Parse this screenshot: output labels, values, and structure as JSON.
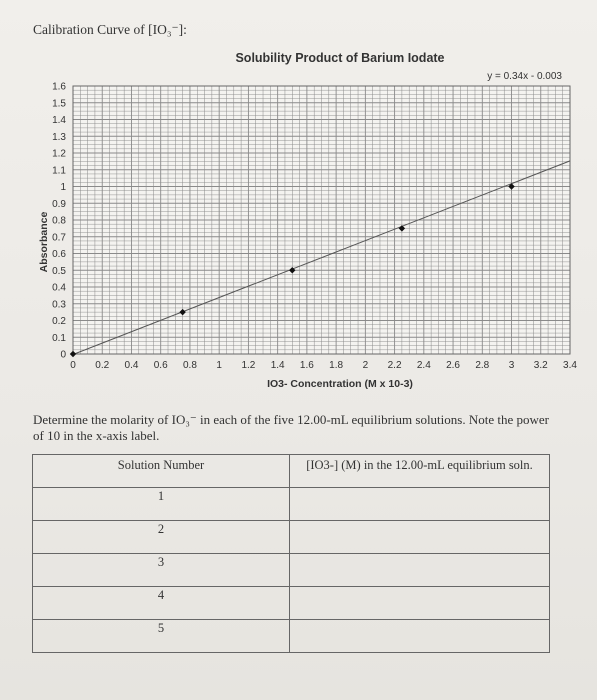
{
  "page": {
    "top_label": "Calibration Curve of [IO₃⁻]:",
    "instructions": "Determine the molarity of IO₃⁻ in each of the five 12.00-mL equilibrium solutions. Note the power of 10 in the x-axis label.",
    "table": {
      "headers": [
        "Solution Number",
        "[IO3-] (M) in the 12.00-mL equilibrium soln."
      ],
      "rows": [
        {
          "number": "1",
          "value": ""
        },
        {
          "number": "2",
          "value": ""
        },
        {
          "number": "3",
          "value": ""
        },
        {
          "number": "4",
          "value": ""
        },
        {
          "number": "5",
          "value": ""
        }
      ]
    }
  },
  "chart_data": {
    "type": "scatter",
    "title": "Solubility Product of Barium Iodate",
    "equation": "y = 0.34x - 0.003",
    "xlabel": "IO3- Concentration (M x 10-3)",
    "ylabel": "Absorbance",
    "xlim": [
      0,
      3.4
    ],
    "ylim": [
      0,
      1.6
    ],
    "x_ticks": [
      "0",
      "0.2",
      "0.4",
      "0.6",
      "0.8",
      "1",
      "1.2",
      "1.4",
      "1.6",
      "1.8",
      "2",
      "2.2",
      "2.4",
      "2.6",
      "2.8",
      "3",
      "3.2",
      "3.4"
    ],
    "y_ticks": [
      "0",
      "0.1",
      "0.2",
      "0.3",
      "0.4",
      "0.5",
      "0.6",
      "0.7",
      "0.8",
      "0.9",
      "1",
      "1.1",
      "1.2",
      "1.3",
      "1.4",
      "1.5",
      "1.6"
    ],
    "grid": true,
    "points": [
      {
        "x": 0.0,
        "y": 0.0
      },
      {
        "x": 0.75,
        "y": 0.25
      },
      {
        "x": 1.5,
        "y": 0.5
      },
      {
        "x": 2.25,
        "y": 0.75
      },
      {
        "x": 3.0,
        "y": 1.0
      }
    ],
    "trendline": {
      "slope": 0.34,
      "intercept": -0.003
    },
    "colors": {
      "grid": "#8a8a8a",
      "line": "#555555",
      "marker": "#111111"
    }
  }
}
